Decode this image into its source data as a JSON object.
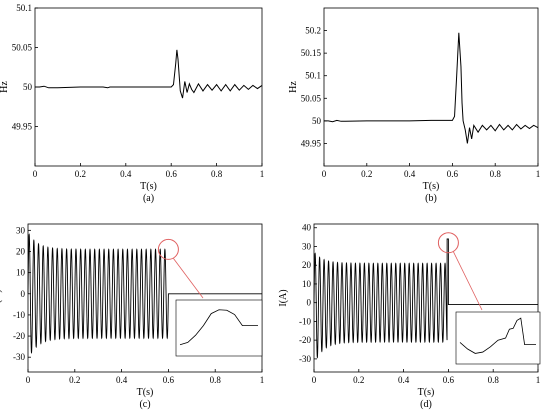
{
  "chart_data": [
    {
      "id": "a",
      "type": "line",
      "caption": "(a)",
      "xlabel": "T(s)",
      "ylabel": "Hz",
      "xlim": [
        0,
        1
      ],
      "ylim": [
        49.9,
        50.1
      ],
      "xticks": [
        0,
        0.2,
        0.4,
        0.6,
        0.8,
        1
      ],
      "xtick_labels": [
        "0",
        "0.2",
        "0.4",
        "0.6",
        "0.8",
        "1"
      ],
      "yticks": [
        49.95,
        50,
        50.05,
        50.1
      ],
      "ytick_labels": [
        "49.95",
        "50",
        "50.05",
        "50.1"
      ],
      "grid": false,
      "series": [
        {
          "x": [
            0,
            0.02,
            0.04,
            0.06,
            0.08,
            0.1,
            0.2,
            0.3,
            0.32,
            0.33,
            0.34,
            0.4,
            0.5,
            0.6,
            0.61,
            0.62,
            0.625,
            0.63,
            0.64,
            0.65,
            0.66,
            0.67,
            0.68,
            0.69,
            0.7,
            0.72,
            0.74,
            0.76,
            0.78,
            0.8,
            0.82,
            0.84,
            0.86,
            0.88,
            0.9,
            0.92,
            0.94,
            0.96,
            0.98,
            1
          ],
          "y": [
            50,
            50,
            50.001,
            49.999,
            49.999,
            49.999,
            50,
            50,
            49.999,
            50,
            50,
            50,
            50,
            50,
            50.003,
            50.03,
            50.047,
            50.035,
            49.995,
            49.986,
            50.007,
            49.993,
            50.004,
            49.997,
            49.993,
            50.004,
            49.995,
            50.003,
            49.996,
            50.003,
            49.995,
            50.003,
            49.995,
            50.003,
            49.996,
            50.002,
            49.997,
            50.002,
            49.998,
            50.002
          ]
        }
      ]
    },
    {
      "id": "b",
      "type": "line",
      "caption": "(b)",
      "xlabel": "T(s)",
      "ylabel": "Hz",
      "xlim": [
        0,
        1
      ],
      "ylim": [
        49.9,
        50.25
      ],
      "xticks": [
        0,
        0.2,
        0.4,
        0.6,
        0.8,
        1
      ],
      "xtick_labels": [
        "0",
        "0.2",
        "0.4",
        "0.6",
        "0.8",
        "1"
      ],
      "yticks": [
        49.95,
        50,
        50.05,
        50.1,
        50.15,
        50.2
      ],
      "ytick_labels": [
        "49.95",
        "50",
        "50.05",
        "50.1",
        "50.15",
        "50.2"
      ],
      "grid": false,
      "series": [
        {
          "x": [
            0,
            0.02,
            0.04,
            0.06,
            0.08,
            0.1,
            0.2,
            0.3,
            0.4,
            0.5,
            0.6,
            0.61,
            0.62,
            0.63,
            0.64,
            0.645,
            0.65,
            0.66,
            0.67,
            0.68,
            0.69,
            0.7,
            0.72,
            0.74,
            0.76,
            0.78,
            0.8,
            0.82,
            0.84,
            0.86,
            0.88,
            0.9,
            0.92,
            0.94,
            0.96,
            0.98,
            1
          ],
          "y": [
            50,
            50,
            49.998,
            50.001,
            49.999,
            49.999,
            50,
            50,
            50,
            50.001,
            50.001,
            50.01,
            50.1,
            50.195,
            50.12,
            50.04,
            50,
            49.98,
            49.95,
            49.985,
            49.96,
            49.99,
            49.975,
            49.99,
            49.98,
            49.99,
            49.978,
            49.992,
            49.98,
            49.99,
            49.98,
            49.992,
            49.982,
            49.99,
            49.983,
            49.99,
            49.985
          ]
        }
      ]
    },
    {
      "id": "c",
      "type": "line",
      "caption": "(c)",
      "xlabel": "T(s)",
      "ylabel": "I(A)",
      "xlim": [
        0,
        1
      ],
      "ylim": [
        -37,
        33
      ],
      "xticks": [
        0,
        0.2,
        0.4,
        0.6,
        0.8,
        1
      ],
      "xtick_labels": [
        "0",
        "0.2",
        "0.4",
        "0.6",
        "0.8",
        "1"
      ],
      "yticks": [
        -30,
        -20,
        -10,
        0,
        10,
        20,
        30
      ],
      "ytick_labels": [
        "-30",
        "-20",
        "-10",
        "0",
        "10",
        "20",
        "30"
      ],
      "grid": false,
      "series": [
        {
          "signal": "ac-current",
          "frequency_hz": 50,
          "amplitude_a": 21,
          "initial_peak_a": 29,
          "initial_trough_a": -31,
          "cutoff_s": 0.6,
          "after_cutoff_a": 0
        }
      ],
      "annotation": {
        "type": "zoom-circle",
        "target_x": 0.6,
        "target_y": 21
      },
      "inset": {
        "x": [
          0,
          0.1,
          0.2,
          0.3,
          0.4,
          0.5,
          0.6,
          0.7,
          0.8,
          0.9,
          1
        ],
        "y": [
          0.15,
          0.2,
          0.35,
          0.55,
          0.8,
          0.88,
          0.87,
          0.78,
          0.55,
          0.55,
          0.55
        ]
      }
    },
    {
      "id": "d",
      "type": "line",
      "caption": "(d)",
      "xlabel": "T(s)",
      "ylabel": "I(A)",
      "xlim": [
        0,
        1
      ],
      "ylim": [
        -37,
        42
      ],
      "xticks": [
        0,
        0.2,
        0.4,
        0.6,
        0.8,
        1
      ],
      "xtick_labels": [
        "0",
        "0.2",
        "0.4",
        "0.6",
        "0.8",
        "1"
      ],
      "yticks": [
        -30,
        -20,
        -10,
        0,
        10,
        20,
        30,
        40
      ],
      "ytick_labels": [
        "-30",
        "-20",
        "-10",
        "0",
        "10",
        "20",
        "30",
        "40"
      ],
      "grid": false,
      "series": [
        {
          "signal": "ac-current",
          "frequency_hz": 50,
          "amplitude_a": 21,
          "initial_peak_a": 27,
          "initial_trough_a": -33,
          "cutoff_s": 0.6,
          "spike_peak_a": 34,
          "after_cutoff_a": -1
        }
      ],
      "annotation": {
        "type": "zoom-circle",
        "target_x": 0.6,
        "target_y": 32
      },
      "inset": {
        "x": [
          0,
          0.1,
          0.2,
          0.3,
          0.4,
          0.5,
          0.6,
          0.65,
          0.7,
          0.75,
          0.8,
          0.85,
          0.9,
          1
        ],
        "y": [
          0.4,
          0.25,
          0.15,
          0.18,
          0.3,
          0.45,
          0.5,
          0.7,
          0.72,
          0.9,
          0.95,
          0.35,
          0.35,
          0.35
        ]
      }
    }
  ]
}
